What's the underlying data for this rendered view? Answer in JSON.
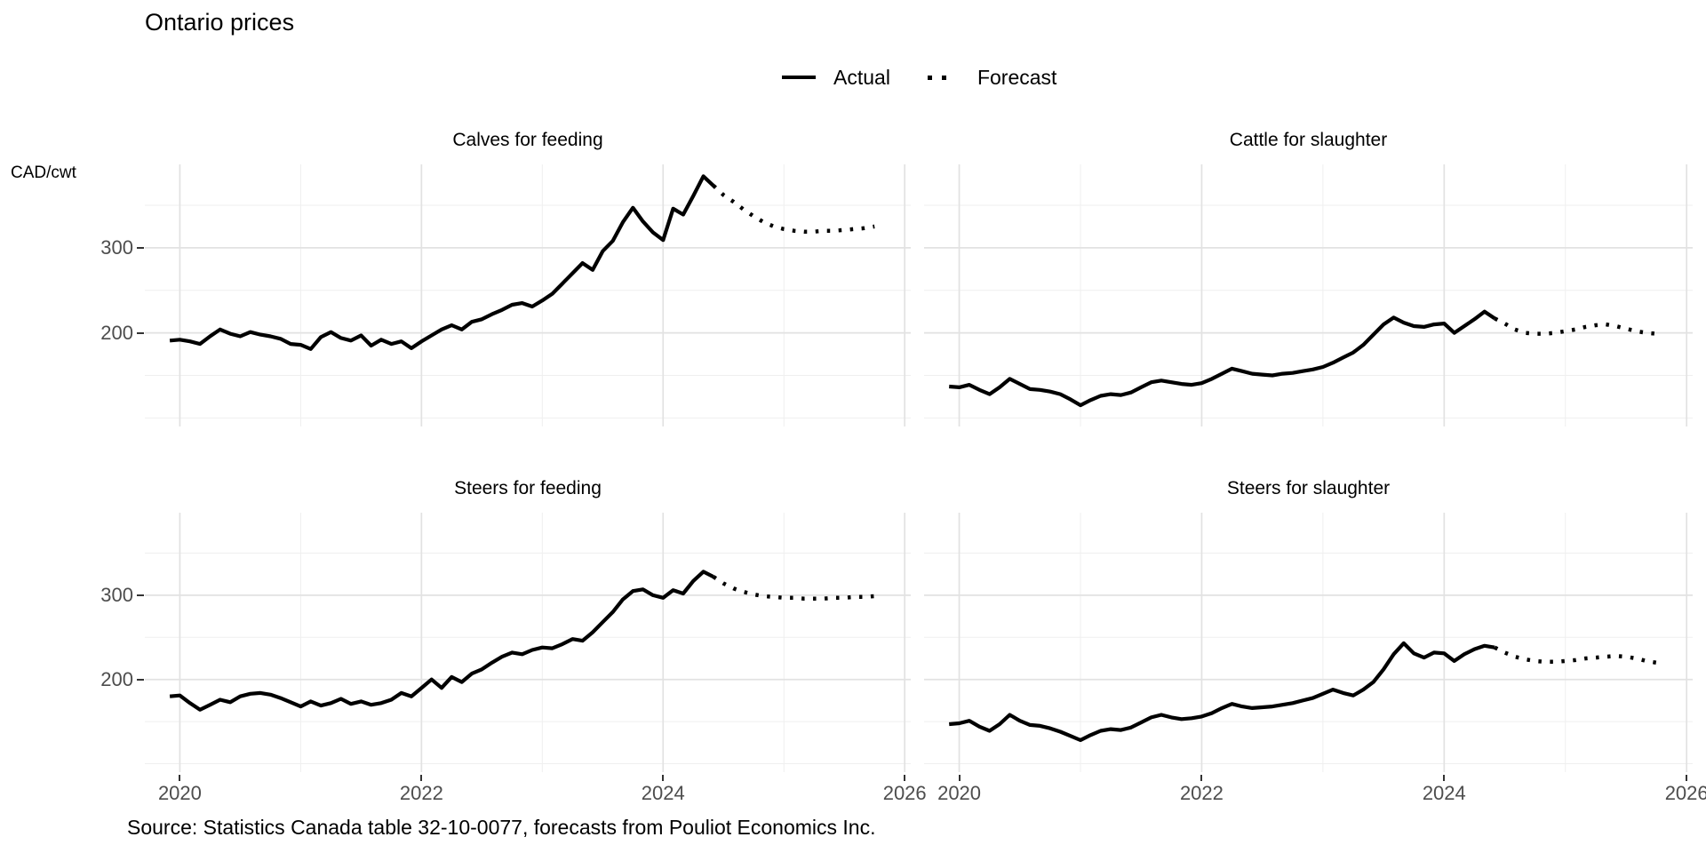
{
  "title": "Ontario prices",
  "ylabel": "CAD/cwt",
  "source": "Source: Statistics Canada table 32-10-0077, forecasts from Pouliot Economics Inc.",
  "legend": {
    "actual_label": "Actual",
    "forecast_label": "Forecast"
  },
  "colors": {
    "line": "#000000",
    "grid_major": "#e2e2e2",
    "grid_minor": "#efefef",
    "axis_text": "#4d4d4d",
    "tick_mark": "#333333",
    "background": "#ffffff"
  },
  "chart_data": {
    "type": "line",
    "title": "Ontario prices",
    "ylabel": "CAD/cwt",
    "frequency": "monthly",
    "series_start": "2019-12",
    "actual_end": "2024-06",
    "forecast_start": "2024-07",
    "forecast_end": "2025-10",
    "x_domain": [
      2019.71,
      2026.05
    ],
    "y_domain": [
      90,
      398
    ],
    "x_ticks": [
      2020,
      2022,
      2024,
      2026
    ],
    "x_tick_labels": [
      "2020",
      "2022",
      "2024",
      "2026"
    ],
    "x_minor": [
      2021,
      2023,
      2025
    ],
    "y_ticks": [
      200,
      300
    ],
    "y_tick_labels": [
      "200",
      "300"
    ],
    "y_minor": [
      100,
      150,
      250,
      350
    ],
    "legend": [
      {
        "label": "Actual",
        "style": "solid"
      },
      {
        "label": "Forecast",
        "style": "dotted"
      }
    ],
    "panels": [
      {
        "title": "Calves for feeding",
        "actual": [
          191,
          192,
          190,
          187,
          196,
          204,
          199,
          196,
          201,
          198,
          196,
          193,
          187,
          186,
          181,
          195,
          201,
          194,
          191,
          197,
          185,
          192,
          187,
          190,
          182,
          190,
          197,
          204,
          209,
          204,
          213,
          216,
          222,
          227,
          233,
          235,
          231,
          238,
          246,
          258,
          270,
          282,
          274,
          296,
          308,
          330,
          347,
          331,
          318,
          309,
          346,
          339,
          361,
          384,
          373
        ],
        "forecast": [
          362,
          354,
          345,
          337,
          330,
          325,
          322,
          320,
          319,
          319,
          320,
          320,
          321,
          322,
          323,
          325
        ]
      },
      {
        "title": "Cattle for slaughter",
        "actual": [
          137,
          136,
          139,
          133,
          128,
          136,
          146,
          140,
          134,
          133,
          131,
          128,
          122,
          115,
          121,
          126,
          128,
          127,
          130,
          136,
          142,
          144,
          142,
          140,
          139,
          141,
          146,
          152,
          158,
          155,
          152,
          151,
          150,
          152,
          153,
          155,
          157,
          160,
          165,
          171,
          177,
          186,
          198,
          210,
          218,
          212,
          208,
          207,
          210,
          211,
          200,
          208,
          216,
          225,
          217
        ],
        "forecast": [
          211,
          204,
          200,
          199,
          199,
          200,
          202,
          204,
          207,
          209,
          210,
          208,
          205,
          202,
          200,
          199
        ]
      },
      {
        "title": "Steers for feeding",
        "actual": [
          180,
          181,
          172,
          164,
          170,
          176,
          173,
          180,
          183,
          184,
          182,
          178,
          173,
          168,
          174,
          169,
          172,
          177,
          171,
          174,
          170,
          172,
          176,
          184,
          180,
          190,
          200,
          190,
          203,
          197,
          207,
          212,
          220,
          227,
          232,
          230,
          235,
          238,
          237,
          242,
          248,
          246,
          256,
          268,
          280,
          295,
          305,
          307,
          300,
          297,
          306,
          302,
          317,
          328,
          322
        ],
        "forecast": [
          314,
          308,
          304,
          301,
          299,
          298,
          297,
          297,
          296,
          296,
          296,
          297,
          297,
          298,
          298,
          299
        ]
      },
      {
        "title": "Steers for slaughter",
        "actual": [
          147,
          148,
          151,
          144,
          139,
          147,
          158,
          151,
          146,
          145,
          142,
          138,
          133,
          128,
          134,
          139,
          141,
          140,
          143,
          149,
          155,
          158,
          155,
          153,
          154,
          156,
          160,
          166,
          171,
          168,
          166,
          167,
          168,
          170,
          172,
          175,
          178,
          183,
          188,
          184,
          181,
          188,
          197,
          212,
          230,
          243,
          231,
          226,
          232,
          231,
          222,
          230,
          236,
          240,
          238
        ],
        "forecast": [
          232,
          227,
          224,
          222,
          221,
          221,
          222,
          223,
          225,
          226,
          227,
          228,
          227,
          225,
          222,
          220
        ]
      }
    ]
  }
}
